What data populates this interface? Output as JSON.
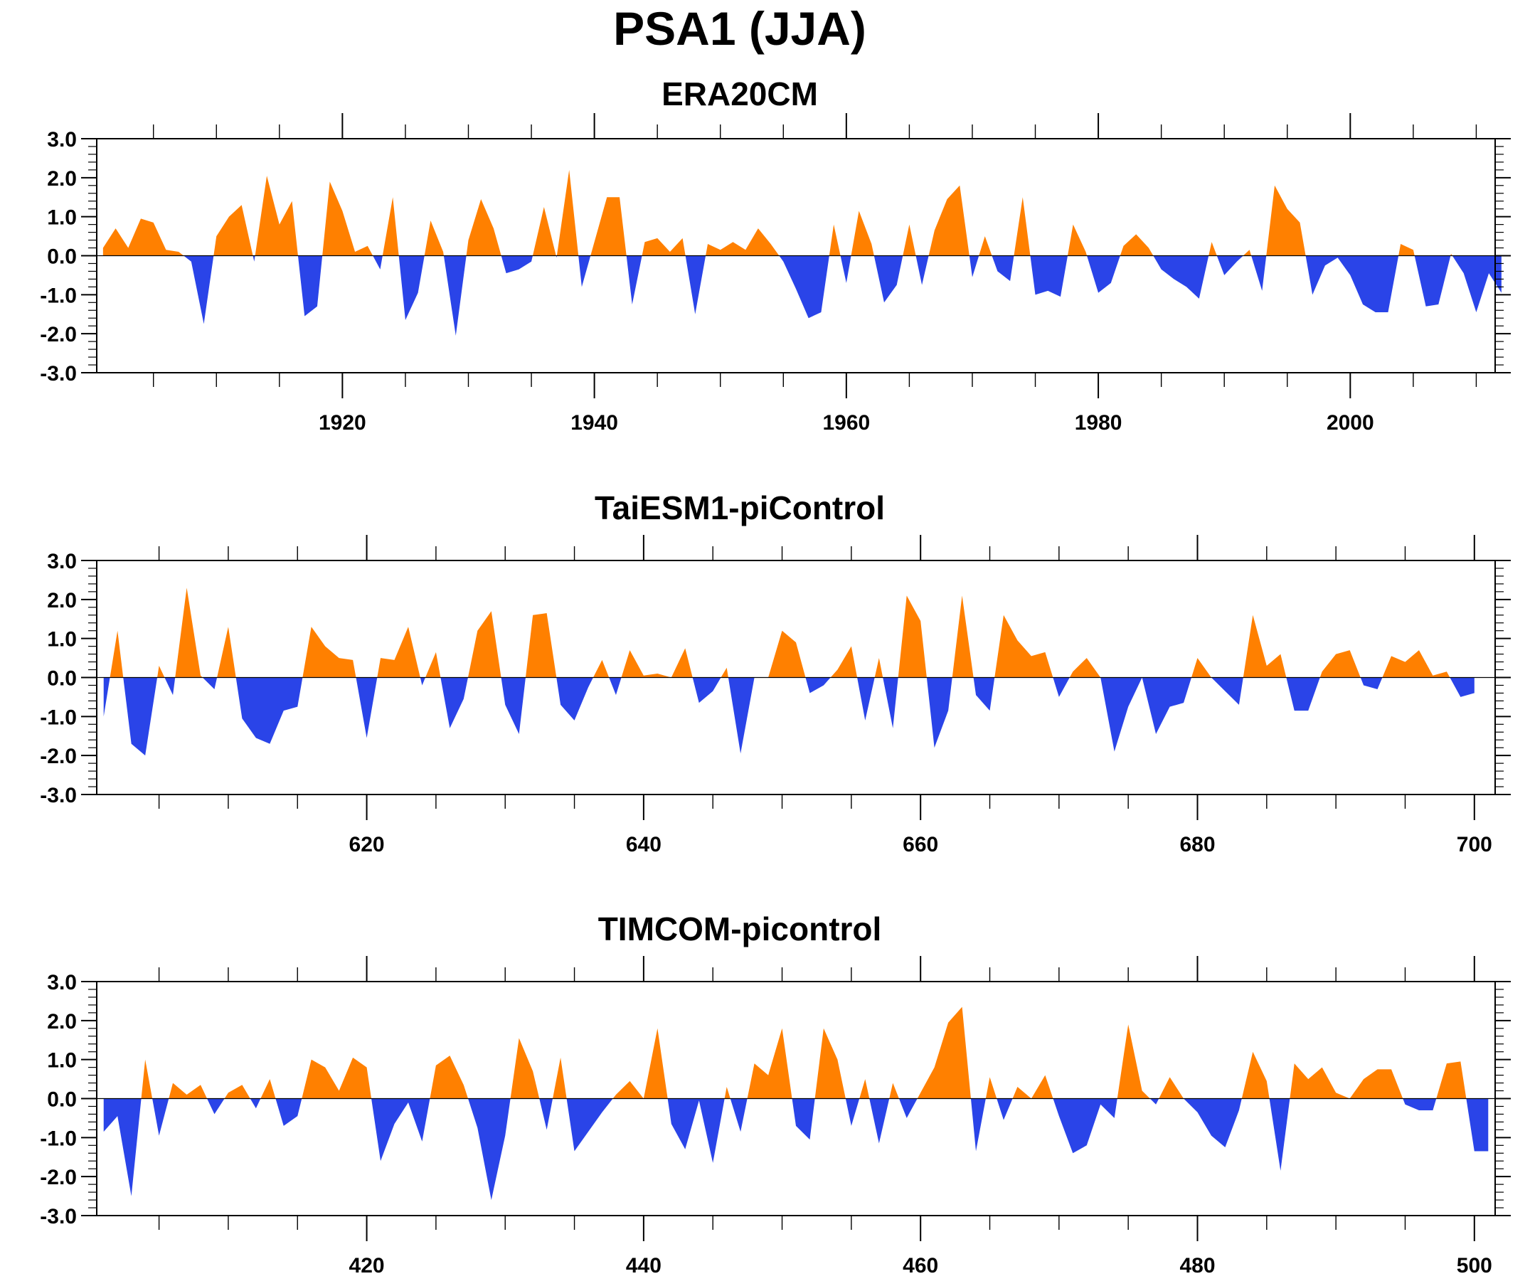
{
  "title": "PSA1 (JJA)",
  "colors": {
    "positive": "#ff8000",
    "negative": "#2a44e8",
    "axis": "#000000"
  },
  "chart_data": [
    {
      "type": "area",
      "title": "ERA20CM",
      "xlabel": "",
      "ylabel": "",
      "ylim": [
        -3,
        3
      ],
      "xlim": [
        1900.5,
        2011.5
      ],
      "grid": false,
      "yticks": [
        "3.0",
        "2.0",
        "1.0",
        "0.0",
        "-1.0",
        "-2.0",
        "-3.0"
      ],
      "xticks": [
        {
          "value": 1920,
          "label": "1920"
        },
        {
          "value": 1940,
          "label": "1940"
        },
        {
          "value": 1960,
          "label": "1960"
        },
        {
          "value": 1980,
          "label": "1980"
        },
        {
          "value": 2000,
          "label": "2000"
        }
      ],
      "x_start": 1901,
      "x_step": 1,
      "values": [
        0.2,
        0.7,
        0.2,
        0.95,
        0.85,
        0.15,
        0.1,
        -0.15,
        -1.75,
        0.5,
        1.0,
        1.3,
        -0.15,
        2.05,
        0.8,
        1.4,
        -1.55,
        -1.3,
        1.9,
        1.15,
        0.1,
        0.25,
        -0.35,
        1.5,
        -1.65,
        -0.95,
        0.9,
        0.1,
        -2.05,
        0.4,
        1.45,
        0.7,
        -0.45,
        -0.35,
        -0.15,
        1.25,
        -0.05,
        2.2,
        -0.8,
        0.35,
        1.5,
        1.5,
        -1.25,
        0.35,
        0.45,
        0.1,
        0.45,
        -1.5,
        0.3,
        0.15,
        0.35,
        0.15,
        0.7,
        0.3,
        -0.15,
        -0.85,
        -1.6,
        -1.45,
        0.8,
        -0.7,
        1.15,
        0.3,
        -1.2,
        -0.75,
        0.8,
        -0.75,
        0.65,
        1.45,
        1.8,
        -0.55,
        0.5,
        -0.4,
        -0.65,
        1.5,
        -1.0,
        -0.9,
        -1.05,
        0.8,
        0.1,
        -0.95,
        -0.7,
        0.25,
        0.55,
        0.2,
        -0.35,
        -0.6,
        -0.8,
        -1.1,
        0.35,
        -0.5,
        -0.15,
        0.15,
        -0.9,
        1.8,
        1.2,
        0.85,
        -1.0,
        -0.25,
        -0.05,
        -0.5,
        -1.25,
        -1.45,
        -1.45,
        0.3,
        0.15,
        -1.3,
        -1.25,
        0.05,
        -0.45,
        -1.45,
        -0.45,
        -0.95
      ]
    },
    {
      "type": "area",
      "title": "TaiESM1-piControl",
      "xlabel": "",
      "ylabel": "",
      "ylim": [
        -3,
        3
      ],
      "xlim": [
        600.5,
        701.5
      ],
      "grid": false,
      "yticks": [
        "3.0",
        "2.0",
        "1.0",
        "0.0",
        "-1.0",
        "-2.0",
        "-3.0"
      ],
      "xticks": [
        {
          "value": 620,
          "label": "620"
        },
        {
          "value": 640,
          "label": "640"
        },
        {
          "value": 660,
          "label": "660"
        },
        {
          "value": 680,
          "label": "680"
        },
        {
          "value": 700,
          "label": "700"
        }
      ],
      "x_start": 601,
      "x_step": 1,
      "values": [
        -1.0,
        1.2,
        -1.7,
        -2.0,
        0.3,
        -0.45,
        2.3,
        0.05,
        -0.3,
        1.3,
        -1.05,
        -1.55,
        -1.7,
        -0.85,
        -0.75,
        1.3,
        0.8,
        0.5,
        0.45,
        -1.55,
        0.5,
        0.45,
        1.3,
        -0.2,
        0.65,
        -1.3,
        -0.55,
        1.2,
        1.7,
        -0.7,
        -1.45,
        1.6,
        1.65,
        -0.7,
        -1.1,
        -0.25,
        0.45,
        -0.45,
        0.7,
        0.05,
        0.1,
        0.0,
        0.75,
        -0.65,
        -0.35,
        0.25,
        -1.95,
        0.0,
        0.0,
        1.2,
        0.9,
        -0.4,
        -0.2,
        0.2,
        0.8,
        -1.1,
        0.5,
        -1.3,
        2.1,
        1.45,
        -1.8,
        -0.85,
        2.1,
        -0.45,
        -0.85,
        1.6,
        0.95,
        0.55,
        0.65,
        -0.5,
        0.15,
        0.5,
        0.0,
        -1.9,
        -0.75,
        0.0,
        -1.45,
        -0.75,
        -0.65,
        0.5,
        0.0,
        -0.35,
        -0.7,
        1.6,
        0.3,
        0.6,
        -0.85,
        -0.85,
        0.15,
        0.6,
        0.7,
        -0.2,
        -0.3,
        0.55,
        0.4,
        0.7,
        0.05,
        0.15,
        -0.5,
        -0.4
      ]
    },
    {
      "type": "area",
      "title": "TIMCOM-picontrol",
      "xlabel": "",
      "ylabel": "",
      "ylim": [
        -3,
        3
      ],
      "xlim": [
        400.5,
        501.5
      ],
      "grid": false,
      "yticks": [
        "3.0",
        "2.0",
        "1.0",
        "0.0",
        "-1.0",
        "-2.0",
        "-3.0"
      ],
      "xticks": [
        {
          "value": 420,
          "label": "420"
        },
        {
          "value": 440,
          "label": "440"
        },
        {
          "value": 460,
          "label": "460"
        },
        {
          "value": 480,
          "label": "480"
        },
        {
          "value": 500,
          "label": "500"
        }
      ],
      "x_start": 401,
      "x_step": 1,
      "values": [
        -0.85,
        -0.45,
        -2.5,
        1.0,
        -0.95,
        0.4,
        0.1,
        0.35,
        -0.4,
        0.15,
        0.35,
        -0.25,
        0.5,
        -0.7,
        -0.45,
        1.0,
        0.8,
        0.2,
        1.05,
        0.8,
        -1.6,
        -0.65,
        -0.1,
        -1.1,
        0.85,
        1.1,
        0.35,
        -0.75,
        -2.6,
        -0.95,
        1.55,
        0.7,
        -0.8,
        1.05,
        -1.35,
        -0.85,
        -0.35,
        0.1,
        0.45,
        0.0,
        1.8,
        -0.65,
        -1.3,
        -0.05,
        -1.65,
        0.3,
        -0.85,
        0.9,
        0.6,
        1.8,
        -0.7,
        -1.05,
        1.8,
        1.0,
        -0.7,
        0.5,
        -1.15,
        0.4,
        -0.5,
        0.15,
        0.8,
        1.95,
        2.35,
        -1.35,
        0.55,
        -0.55,
        0.3,
        0.0,
        0.6,
        -0.45,
        -1.4,
        -1.2,
        -0.15,
        -0.5,
        1.9,
        0.2,
        -0.15,
        0.55,
        0.0,
        -0.35,
        -0.95,
        -1.25,
        -0.3,
        1.2,
        0.45,
        -1.85,
        0.9,
        0.5,
        0.8,
        0.15,
        0.0,
        0.5,
        0.75,
        0.75,
        -0.15,
        -0.3,
        -0.3,
        0.9,
        0.95,
        -1.35,
        -1.35
      ]
    }
  ]
}
